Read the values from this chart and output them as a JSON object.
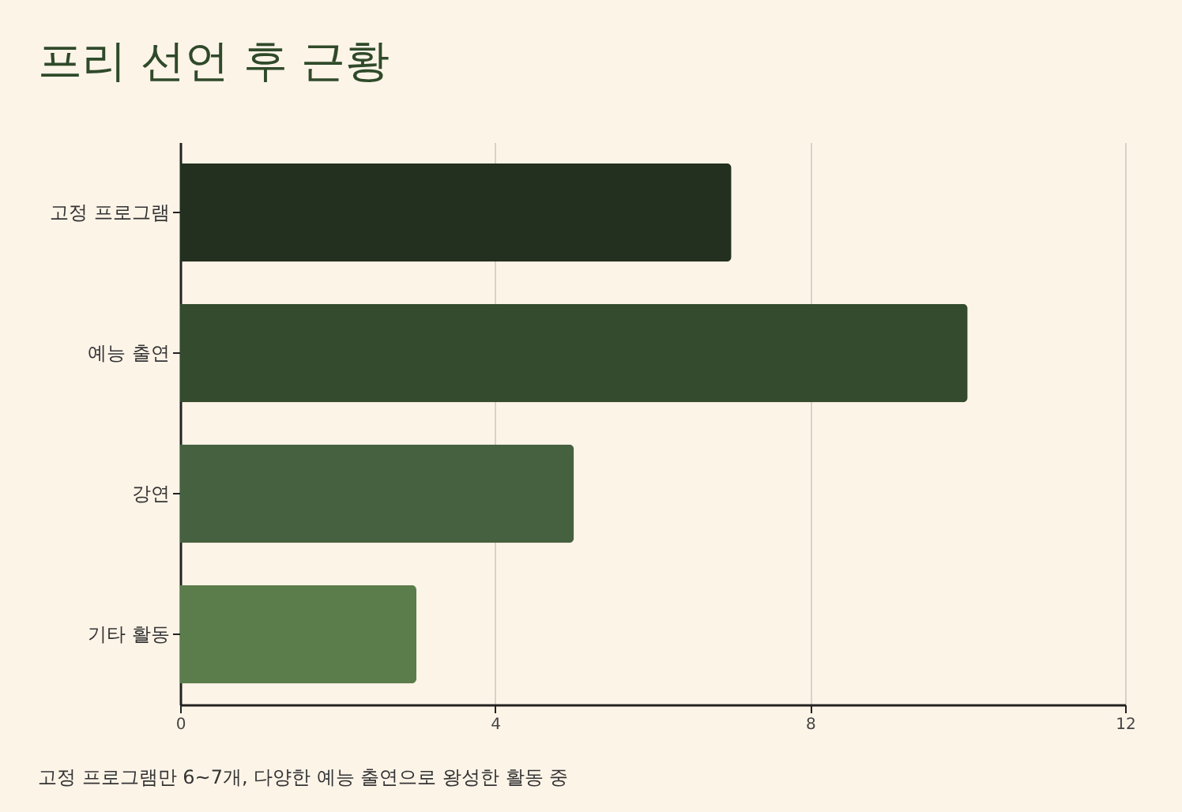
{
  "chart_data": {
    "type": "bar",
    "orientation": "horizontal",
    "title": "프리 선언 후 근황",
    "categories": [
      "고정 프로그램",
      "예능 출연",
      "강연",
      "기타 활동"
    ],
    "values": [
      7,
      10,
      5,
      3
    ],
    "colors": [
      "#232f1f",
      "#344b2e",
      "#46613f",
      "#5b7d4b"
    ],
    "xlim": [
      0,
      12
    ],
    "xticks": [
      0,
      4,
      8,
      12
    ],
    "grid": "x",
    "annotations": [
      "고정 프로그램만 6~7개, 다양한 예능 출연으로 왕성한 활동 중"
    ]
  }
}
